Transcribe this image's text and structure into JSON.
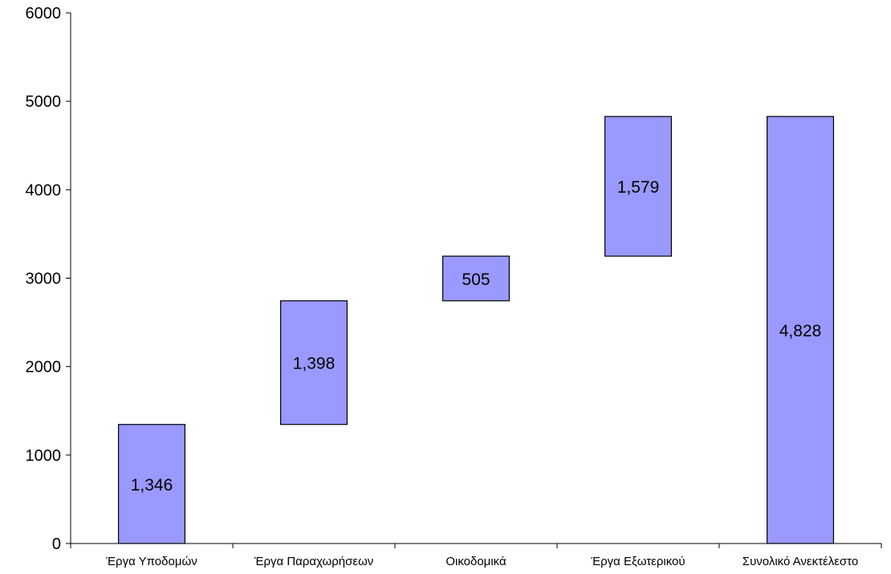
{
  "chart_data": {
    "type": "bar",
    "subtype": "waterfall",
    "categories": [
      "Έργα Υποδομών",
      "Έργα Παραχωρήσεων",
      "Οικοδομικά",
      "Έργα Εξωτερικού",
      "Συνολικό Ανεκτέλεστο"
    ],
    "values": [
      1346,
      1398,
      505,
      1579,
      4828
    ],
    "bases": [
      0,
      1346,
      2744,
      3249,
      0
    ],
    "data_labels": [
      "1,346",
      "1,398",
      "505",
      "1,579",
      "4,828"
    ],
    "ylim": [
      0,
      6000
    ],
    "yticks": [
      0,
      1000,
      2000,
      3000,
      4000,
      5000,
      6000
    ],
    "ytick_labels": [
      "0",
      "1000",
      "2000",
      "3000",
      "4000",
      "5000",
      "6000"
    ],
    "grid": false,
    "legend": false,
    "colors": {
      "bar_fill": "#9999ff",
      "bar_stroke": "#000000",
      "axis": "#000000"
    }
  }
}
